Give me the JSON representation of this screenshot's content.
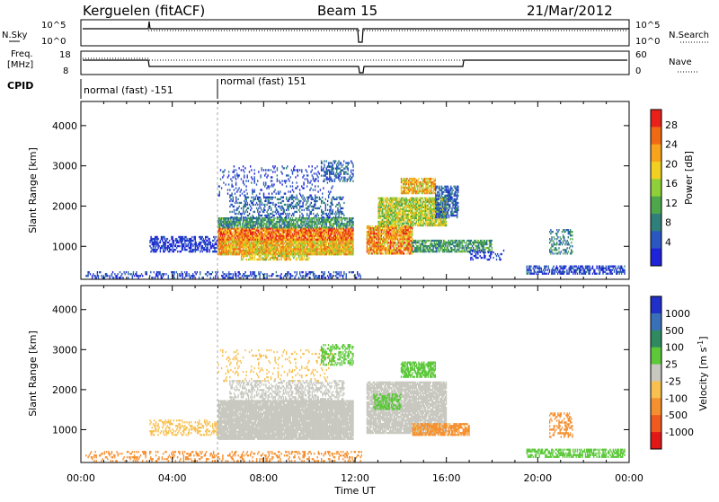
{
  "header": {
    "station": "Kerguelen (fitACF)",
    "beam": "Beam 15",
    "date": "21/Mar/2012"
  },
  "noise_panel": {
    "left_label": "N.Sky",
    "right_label": "N.Search",
    "left_ticks": [
      "10^5",
      "10^0"
    ],
    "right_ticks": [
      "10^5",
      "10^0"
    ]
  },
  "freq_panel": {
    "left_label_line1": "Freq.",
    "left_label_line2": "[MHz]",
    "right_label": "Nave",
    "left_ticks": [
      "18",
      "8"
    ],
    "right_ticks": [
      "60",
      "0"
    ]
  },
  "cpid": {
    "label": "CPID",
    "segments": [
      {
        "name": "normal (fast) -151",
        "start_h": 0,
        "end_h": 6
      },
      {
        "name": "normal (fast) 151",
        "start_h": 6,
        "end_h": 24
      }
    ]
  },
  "chart_data": [
    {
      "type": "heatmap",
      "title": "Power",
      "xlabel": "Time UT",
      "ylabel": "Slant Range [km]",
      "xlim": [
        0,
        24
      ],
      "ylim": [
        180,
        4600
      ],
      "x_ticks": [
        "00:00",
        "04:00",
        "08:00",
        "12:00",
        "16:00",
        "20:00",
        "00:00"
      ],
      "y_ticks": [
        1000,
        2000,
        3000,
        4000
      ],
      "colorbar": {
        "label": "Power [dB]",
        "ticks": [
          "4",
          "8",
          "12",
          "16",
          "20",
          "24",
          "28"
        ],
        "colors": [
          "#1e22d8",
          "#2a58c0",
          "#2f7f7a",
          "#4ea84b",
          "#8fcf3a",
          "#f0d020",
          "#f7a31c",
          "#f06a16",
          "#e8221b"
        ]
      },
      "regions": [
        {
          "t0": 0.2,
          "t1": 12.3,
          "r0": 200,
          "r1": 350,
          "value": 6,
          "density": 0.35
        },
        {
          "t0": 3.0,
          "t1": 6.0,
          "r0": 850,
          "r1": 1250,
          "value": 5,
          "density": 0.55
        },
        {
          "t0": 6.0,
          "t1": 11.9,
          "r0": 780,
          "r1": 1150,
          "value": 22,
          "density": 0.95
        },
        {
          "t0": 6.0,
          "t1": 11.9,
          "r0": 1150,
          "r1": 1450,
          "value": 26,
          "density": 0.9
        },
        {
          "t0": 6.0,
          "t1": 11.9,
          "r0": 1450,
          "r1": 1700,
          "value": 12,
          "density": 0.75
        },
        {
          "t0": 6.5,
          "t1": 11.5,
          "r0": 1700,
          "r1": 2200,
          "value": 8,
          "density": 0.35
        },
        {
          "t0": 6.0,
          "t1": 11.0,
          "r0": 2200,
          "r1": 3000,
          "value": 6,
          "density": 0.15
        },
        {
          "t0": 7.0,
          "t1": 10.0,
          "r0": 650,
          "r1": 780,
          "value": 20,
          "density": 0.55
        },
        {
          "t0": 10.5,
          "t1": 11.9,
          "r0": 2600,
          "r1": 3100,
          "value": 8,
          "density": 0.45
        },
        {
          "t0": 12.5,
          "t1": 14.5,
          "r0": 800,
          "r1": 1500,
          "value": 24,
          "density": 0.85
        },
        {
          "t0": 13.0,
          "t1": 16.0,
          "r0": 1500,
          "r1": 2200,
          "value": 18,
          "density": 0.8
        },
        {
          "t0": 14.0,
          "t1": 15.5,
          "r0": 2300,
          "r1": 2700,
          "value": 22,
          "density": 0.75
        },
        {
          "t0": 15.5,
          "t1": 16.5,
          "r0": 1700,
          "r1": 2500,
          "value": 8,
          "density": 0.6
        },
        {
          "t0": 14.5,
          "t1": 18.0,
          "r0": 850,
          "r1": 1150,
          "value": 12,
          "density": 0.7
        },
        {
          "t0": 17.0,
          "t1": 18.5,
          "r0": 650,
          "r1": 900,
          "value": 5,
          "density": 0.3
        },
        {
          "t0": 19.5,
          "t1": 23.8,
          "r0": 300,
          "r1": 500,
          "value": 6,
          "density": 0.55
        },
        {
          "t0": 20.5,
          "t1": 21.5,
          "r0": 800,
          "r1": 1400,
          "value": 10,
          "density": 0.35
        }
      ]
    },
    {
      "type": "heatmap",
      "title": "Velocity",
      "xlabel": "Time UT",
      "ylabel": "Slant Range [km]",
      "xlim": [
        0,
        24
      ],
      "ylim": [
        180,
        4600
      ],
      "x_ticks": [
        "00:00",
        "04:00",
        "08:00",
        "12:00",
        "16:00",
        "20:00",
        "00:00"
      ],
      "y_ticks": [
        1000,
        2000,
        3000,
        4000
      ],
      "colorbar": {
        "label": "Velocity [m s^-1]",
        "ticks": [
          "1000",
          "500",
          "100",
          "25",
          "-25",
          "-100",
          "-500",
          "-1000"
        ],
        "colors": [
          "#2030c8",
          "#3a70b8",
          "#2f8a60",
          "#5cc83a",
          "#c8c8c0",
          "#f7c050",
          "#f59030",
          "#ef5a20",
          "#e01818"
        ]
      },
      "regions": [
        {
          "t0": 0.2,
          "t1": 12.3,
          "r0": 200,
          "r1": 450,
          "value": -150,
          "density": 0.25
        },
        {
          "t0": 3.0,
          "t1": 6.0,
          "r0": 850,
          "r1": 1250,
          "value": -80,
          "density": 0.35
        },
        {
          "t0": 6.0,
          "t1": 11.9,
          "r0": 750,
          "r1": 1700,
          "value": 0,
          "density": 0.95
        },
        {
          "t0": 6.5,
          "t1": 11.5,
          "r0": 1700,
          "r1": 2200,
          "value": 0,
          "density": 0.45
        },
        {
          "t0": 6.0,
          "t1": 11.0,
          "r0": 2200,
          "r1": 3000,
          "value": -60,
          "density": 0.12
        },
        {
          "t0": 10.5,
          "t1": 11.9,
          "r0": 2600,
          "r1": 3100,
          "value": 60,
          "density": 0.45
        },
        {
          "t0": 12.5,
          "t1": 16.0,
          "r0": 900,
          "r1": 2200,
          "value": 0,
          "density": 0.85
        },
        {
          "t0": 14.0,
          "t1": 15.5,
          "r0": 2300,
          "r1": 2700,
          "value": 60,
          "density": 0.7
        },
        {
          "t0": 14.5,
          "t1": 17.0,
          "r0": 850,
          "r1": 1150,
          "value": -120,
          "density": 0.7
        },
        {
          "t0": 12.8,
          "t1": 14.0,
          "r0": 1500,
          "r1": 1900,
          "value": 60,
          "density": 0.55
        },
        {
          "t0": 19.5,
          "t1": 23.8,
          "r0": 300,
          "r1": 500,
          "value": 60,
          "density": 0.6
        },
        {
          "t0": 20.5,
          "t1": 21.5,
          "r0": 800,
          "r1": 1400,
          "value": -300,
          "density": 0.35
        }
      ]
    }
  ]
}
